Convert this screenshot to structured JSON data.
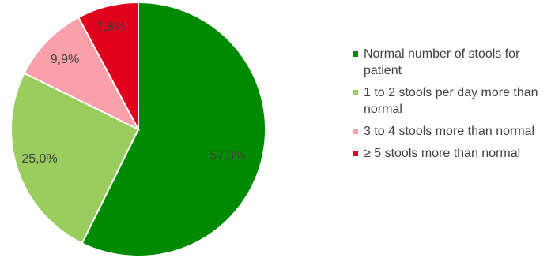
{
  "chart_data": {
    "type": "pie",
    "slices": [
      {
        "label": "Normal number of stools for patient",
        "value": 57.3,
        "value_label": "57,3%",
        "color": "#008a00"
      },
      {
        "label": "1 to 2 stools per day more than normal",
        "value": 25.0,
        "value_label": "25,0%",
        "color": "#9acc5e"
      },
      {
        "label": "3 to 4 stools more than normal",
        "value": 9.9,
        "value_label": "9,9%",
        "color": "#f9a0ab"
      },
      {
        "label": "≥ 5 stools more than normal",
        "value": 7.8,
        "value_label": "7,8%",
        "color": "#e0001b"
      }
    ],
    "legend_position": "right"
  }
}
